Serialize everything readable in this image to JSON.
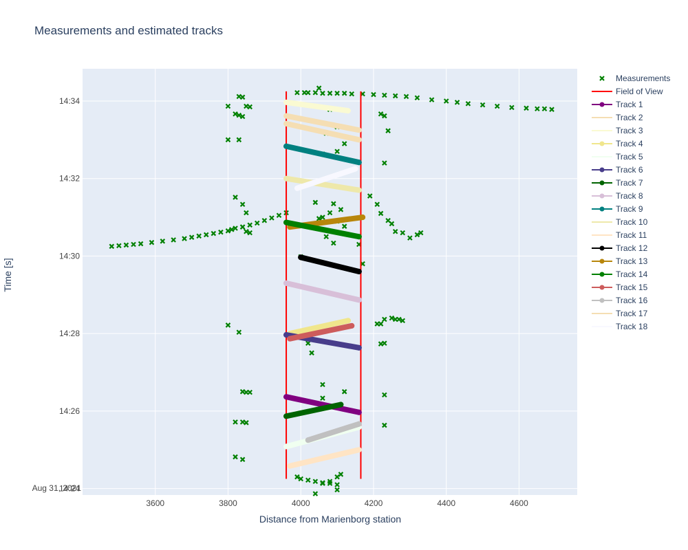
{
  "chart_data": {
    "type": "scatter",
    "title": "Measurements and estimated tracks",
    "xlabel": "Distance from Marienborg station",
    "ylabel": "Time [s]",
    "xlim": [
      3400,
      4760
    ],
    "ylim": [
      "14:23:50",
      "14:34:50"
    ],
    "x_ticks": [
      3600,
      3800,
      4000,
      4200,
      4400,
      4600
    ],
    "y_ticks": [
      "14:24",
      "14:26",
      "14:28",
      "14:30",
      "14:32",
      "14:34"
    ],
    "y_date_label": "Aug 31, 2021",
    "grid": true,
    "legend_position": "right",
    "background_color": "#e5ecf6",
    "measurements": {
      "name": "Measurements",
      "marker": "x",
      "color": "#008000",
      "x": [
        3480,
        3500,
        3520,
        3540,
        3560,
        3590,
        3620,
        3650,
        3680,
        3700,
        3720,
        3740,
        3760,
        3780,
        3800,
        3810,
        3820,
        3840,
        3860,
        3880,
        3900,
        3920,
        3940,
        3960,
        3990,
        4010,
        4020,
        4040,
        4060,
        4080,
        4100,
        4120,
        4140,
        4170,
        4200,
        4230,
        4260,
        4290,
        4320,
        4360,
        4400,
        4430,
        4460,
        4500,
        4540,
        4580,
        4620,
        4650,
        4670,
        4690,
        3830,
        3840,
        3850,
        3860,
        3800,
        3820,
        3830,
        3840,
        3820,
        3840,
        3850,
        3800,
        3830,
        3840,
        3850,
        3860,
        3800,
        3830,
        3840,
        3850,
        3860,
        3820,
        3840,
        3850,
        3820,
        3840,
        4050,
        4080,
        4100,
        4070,
        4120,
        4100,
        4060,
        4040,
        4090,
        4110,
        4080,
        4060,
        4050,
        4100,
        4120,
        4070,
        4090,
        4000,
        4020,
        4030,
        4060,
        4120,
        4060,
        4110,
        4100,
        4080,
        4060,
        4100,
        4040,
        4230,
        4220,
        4240,
        4230,
        4190,
        4210,
        4220,
        4240,
        4250,
        4260,
        4280,
        4300,
        4320,
        4330,
        4250,
        4260,
        4270,
        4280,
        4210,
        4220,
        4230,
        4230,
        4220,
        4230,
        4230,
        4160,
        4170,
        3990,
        4000,
        4020,
        4040,
        4060,
        4080,
        4100
      ],
      "y": [
        "14:30:15",
        "14:30:16",
        "14:30:17",
        "14:30:18",
        "14:30:19",
        "14:30:21",
        "14:30:23",
        "14:30:25",
        "14:30:27",
        "14:30:29",
        "14:30:31",
        "14:30:33",
        "14:30:35",
        "14:30:37",
        "14:30:39",
        "14:30:41",
        "14:30:43",
        "14:30:45",
        "14:30:48",
        "14:30:51",
        "14:30:55",
        "14:30:59",
        "14:31:03",
        "14:31:07",
        "14:34:13",
        "14:34:13",
        "14:34:13",
        "14:34:13",
        "14:34:12",
        "14:34:12",
        "14:34:12",
        "14:34:12",
        "14:34:11",
        "14:34:11",
        "14:34:10",
        "14:34:09",
        "14:34:08",
        "14:34:07",
        "14:34:05",
        "14:34:02",
        "14:34:00",
        "14:33:58",
        "14:33:56",
        "14:33:54",
        "14:33:52",
        "14:33:50",
        "14:33:49",
        "14:33:48",
        "14:33:48",
        "14:33:47",
        "14:34:07",
        "14:34:06",
        "14:33:52",
        "14:33:51",
        "14:33:52",
        "14:33:40",
        "14:33:38",
        "14:33:36",
        "14:31:31",
        "14:31:20",
        "14:31:07",
        "14:33:00",
        "14:33:00",
        "14:30:45",
        "14:30:38",
        "14:30:36",
        "14:28:13",
        "14:28:02",
        "14:26:30",
        "14:26:29",
        "14:26:29",
        "14:25:43",
        "14:25:43",
        "14:25:42",
        "14:24:49",
        "14:24:45",
        "14:34:20",
        "14:33:47",
        "14:33:20",
        "14:33:10",
        "14:32:54",
        "14:32:42",
        "14:32:38",
        "14:31:23",
        "14:31:21",
        "14:31:12",
        "14:31:07",
        "14:31:00",
        "14:30:58",
        "14:30:54",
        "14:30:46",
        "14:30:30",
        "14:30:20",
        "14:29:59",
        "14:27:45",
        "14:27:30",
        "14:26:41",
        "14:26:30",
        "14:26:20",
        "14:24:22",
        "14:24:18",
        "14:24:11",
        "14:24:08",
        "14:23:58",
        "14:23:52",
        "14:33:37",
        "14:33:40",
        "14:33:14",
        "14:32:24",
        "14:31:33",
        "14:31:20",
        "14:31:06",
        "14:30:55",
        "14:30:50",
        "14:30:38",
        "14:30:36",
        "14:30:28",
        "14:30:33",
        "14:30:36",
        "14:28:24",
        "14:28:22",
        "14:28:22",
        "14:28:20",
        "14:28:15",
        "14:28:15",
        "14:28:22",
        "14:27:45",
        "14:27:44",
        "14:26:25",
        "14:25:38",
        "14:30:18",
        "14:29:48",
        "14:24:18",
        "14:24:15",
        "14:24:13",
        "14:24:11",
        "14:24:09",
        "14:24:08",
        "14:24:06"
      ]
    },
    "field_of_view": {
      "name": "Field of View",
      "color": "#ff0000",
      "x_min": 3960,
      "x_max": 4165,
      "y_from": "14:24:15",
      "y_to": "14:34:15"
    },
    "series": [
      {
        "name": "Track 1",
        "color": "#800080",
        "mode": "lines+markers",
        "start": [
          3960,
          "14:26:22"
        ],
        "end": [
          4160,
          "14:25:58"
        ]
      },
      {
        "name": "Track 2",
        "color": "#f5deb3",
        "mode": "lines",
        "start": [
          3960,
          "14:33:37"
        ],
        "end": [
          4160,
          "14:33:15"
        ]
      },
      {
        "name": "Track 3",
        "color": "#fafad2",
        "mode": "lines",
        "start": [
          3960,
          "14:33:58"
        ],
        "end": [
          4130,
          "14:33:45"
        ]
      },
      {
        "name": "Track 4",
        "color": "#f0e68c",
        "mode": "lines+markers",
        "start": [
          3970,
          "14:28:00"
        ],
        "end": [
          4130,
          "14:28:20"
        ]
      },
      {
        "name": "Track 5",
        "color": "#f0fff0",
        "mode": "lines",
        "start": [
          3960,
          "14:25:05"
        ],
        "end": [
          4160,
          "14:25:35"
        ]
      },
      {
        "name": "Track 6",
        "color": "#483d8b",
        "mode": "lines+markers",
        "start": [
          3960,
          "14:27:58"
        ],
        "end": [
          4160,
          "14:27:38"
        ]
      },
      {
        "name": "Track 7",
        "color": "#006400",
        "mode": "lines+markers",
        "start": [
          3960,
          "14:25:52"
        ],
        "end": [
          4110,
          "14:26:10"
        ]
      },
      {
        "name": "Track 8",
        "color": "#d8bfd8",
        "mode": "lines+markers",
        "start": [
          3960,
          "14:29:18"
        ],
        "end": [
          4160,
          "14:28:52"
        ]
      },
      {
        "name": "Track 9",
        "color": "#008080",
        "mode": "lines+markers",
        "start": [
          3960,
          "14:32:50"
        ],
        "end": [
          4160,
          "14:32:25"
        ]
      },
      {
        "name": "Track 10",
        "color": "#eee8aa",
        "mode": "lines",
        "start": [
          3960,
          "14:32:00"
        ],
        "end": [
          4160,
          "14:31:42"
        ]
      },
      {
        "name": "Track 11",
        "color": "#ffe4c4",
        "mode": "lines",
        "start": [
          3970,
          "14:24:35"
        ],
        "end": [
          4160,
          "14:25:00"
        ]
      },
      {
        "name": "Track 12",
        "color": "#000000",
        "mode": "lines+markers",
        "start": [
          4000,
          "14:29:58"
        ],
        "end": [
          4160,
          "14:29:36"
        ]
      },
      {
        "name": "Track 13",
        "color": "#b8860b",
        "mode": "lines+markers",
        "start": [
          3970,
          "14:30:45"
        ],
        "end": [
          4170,
          "14:31:00"
        ]
      },
      {
        "name": "Track 14",
        "color": "#008000",
        "mode": "lines+markers",
        "start": [
          3960,
          "14:30:52"
        ],
        "end": [
          4160,
          "14:30:30"
        ]
      },
      {
        "name": "Track 15",
        "color": "#cd5c5c",
        "mode": "lines+markers",
        "start": [
          3970,
          "14:27:52"
        ],
        "end": [
          4140,
          "14:28:12"
        ]
      },
      {
        "name": "Track 16",
        "color": "#c0c0c0",
        "mode": "lines+markers",
        "start": [
          4020,
          "14:25:15"
        ],
        "end": [
          4160,
          "14:25:40"
        ]
      },
      {
        "name": "Track 17",
        "color": "#f5deb3",
        "mode": "lines",
        "start": [
          3960,
          "14:33:25"
        ],
        "end": [
          4160,
          "14:33:00"
        ]
      },
      {
        "name": "Track 18",
        "color": "#f8f8ff",
        "mode": "lines",
        "start": [
          3990,
          "14:31:45"
        ],
        "end": [
          4150,
          "14:32:15"
        ]
      }
    ]
  }
}
